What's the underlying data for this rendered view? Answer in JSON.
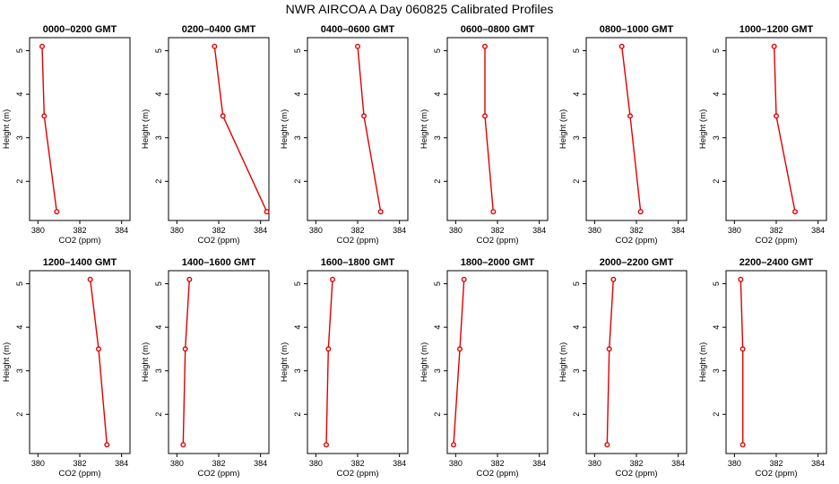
{
  "title": "NWR AIRCOA A  Day 060825  Calibrated Profiles",
  "colors": {
    "series": "#e00000",
    "axes": "#000000",
    "background": "#ffffff"
  },
  "chart_data": [
    {
      "type": "line",
      "title": "0000–0200 GMT",
      "xlabel": "CO2 (ppm)",
      "ylabel": "Height (m)",
      "xlim": [
        379.6,
        384.4
      ],
      "ylim": [
        1.1,
        5.3
      ],
      "xticks": [
        380,
        382,
        384
      ],
      "xtick_labels": [
        "380",
        "382",
        "384"
      ],
      "yticks": [
        2,
        3,
        4,
        5
      ],
      "ytick_labels": [
        "2",
        "3",
        "4",
        "5"
      ],
      "x": [
        380.2,
        380.3,
        380.9
      ],
      "y": [
        5.1,
        3.5,
        1.3
      ]
    },
    {
      "type": "line",
      "title": "0200–0400 GMT",
      "xlabel": "CO2 (ppm)",
      "ylabel": "Height (m)",
      "xlim": [
        379.6,
        384.4
      ],
      "ylim": [
        1.1,
        5.3
      ],
      "xticks": [
        380,
        382,
        384
      ],
      "xtick_labels": [
        "380",
        "382",
        "384"
      ],
      "yticks": [
        2,
        3,
        4,
        5
      ],
      "ytick_labels": [
        "2",
        "3",
        "4",
        "5"
      ],
      "x": [
        381.8,
        382.2,
        384.3
      ],
      "y": [
        5.1,
        3.5,
        1.3
      ]
    },
    {
      "type": "line",
      "title": "0400–0600 GMT",
      "xlabel": "CO2 (ppm)",
      "ylabel": "Height (m)",
      "xlim": [
        379.6,
        384.4
      ],
      "ylim": [
        1.1,
        5.3
      ],
      "xticks": [
        380,
        382,
        384
      ],
      "xtick_labels": [
        "380",
        "382",
        "384"
      ],
      "yticks": [
        2,
        3,
        4,
        5
      ],
      "ytick_labels": [
        "2",
        "3",
        "4",
        "5"
      ],
      "x": [
        382.0,
        382.3,
        383.1
      ],
      "y": [
        5.1,
        3.5,
        1.3
      ]
    },
    {
      "type": "line",
      "title": "0600–0800 GMT",
      "xlabel": "CO2 (ppm)",
      "ylabel": "Height (m)",
      "xlim": [
        379.6,
        384.4
      ],
      "ylim": [
        1.1,
        5.3
      ],
      "xticks": [
        380,
        382,
        384
      ],
      "xtick_labels": [
        "380",
        "382",
        "384"
      ],
      "yticks": [
        2,
        3,
        4,
        5
      ],
      "ytick_labels": [
        "2",
        "3",
        "4",
        "5"
      ],
      "x": [
        381.4,
        381.4,
        381.8
      ],
      "y": [
        5.1,
        3.5,
        1.3
      ]
    },
    {
      "type": "line",
      "title": "0800–1000 GMT",
      "xlabel": "CO2 (ppm)",
      "ylabel": "Height (m)",
      "xlim": [
        379.6,
        384.4
      ],
      "ylim": [
        1.1,
        5.3
      ],
      "xticks": [
        380,
        382,
        384
      ],
      "xtick_labels": [
        "380",
        "382",
        "384"
      ],
      "yticks": [
        2,
        3,
        4,
        5
      ],
      "ytick_labels": [
        "2",
        "3",
        "4",
        "5"
      ],
      "x": [
        381.3,
        381.7,
        382.2
      ],
      "y": [
        5.1,
        3.5,
        1.3
      ]
    },
    {
      "type": "line",
      "title": "1000–1200 GMT",
      "xlabel": "CO2 (ppm)",
      "ylabel": "Height (m)",
      "xlim": [
        379.6,
        384.4
      ],
      "ylim": [
        1.1,
        5.3
      ],
      "xticks": [
        380,
        382,
        384
      ],
      "xtick_labels": [
        "380",
        "382",
        "384"
      ],
      "yticks": [
        2,
        3,
        4,
        5
      ],
      "ytick_labels": [
        "2",
        "3",
        "4",
        "5"
      ],
      "x": [
        381.9,
        382.0,
        382.9
      ],
      "y": [
        5.1,
        3.5,
        1.3
      ]
    },
    {
      "type": "line",
      "title": "1200–1400 GMT",
      "xlabel": "CO2 (ppm)",
      "ylabel": "Height (m)",
      "xlim": [
        379.6,
        384.4
      ],
      "ylim": [
        1.1,
        5.3
      ],
      "xticks": [
        380,
        382,
        384
      ],
      "xtick_labels": [
        "380",
        "382",
        "384"
      ],
      "yticks": [
        2,
        3,
        4,
        5
      ],
      "ytick_labels": [
        "2",
        "3",
        "4",
        "5"
      ],
      "x": [
        382.5,
        382.9,
        383.3
      ],
      "y": [
        5.1,
        3.5,
        1.3
      ]
    },
    {
      "type": "line",
      "title": "1400–1600 GMT",
      "xlabel": "CO2 (ppm)",
      "ylabel": "Height (m)",
      "xlim": [
        379.6,
        384.4
      ],
      "ylim": [
        1.1,
        5.3
      ],
      "xticks": [
        380,
        382,
        384
      ],
      "xtick_labels": [
        "380",
        "382",
        "384"
      ],
      "yticks": [
        2,
        3,
        4,
        5
      ],
      "ytick_labels": [
        "2",
        "3",
        "4",
        "5"
      ],
      "x": [
        380.6,
        380.4,
        380.3
      ],
      "y": [
        5.1,
        3.5,
        1.3
      ]
    },
    {
      "type": "line",
      "title": "1600–1800 GMT",
      "xlabel": "CO2 (ppm)",
      "ylabel": "Height (m)",
      "xlim": [
        379.6,
        384.4
      ],
      "ylim": [
        1.1,
        5.3
      ],
      "xticks": [
        380,
        382,
        384
      ],
      "xtick_labels": [
        "380",
        "382",
        "384"
      ],
      "yticks": [
        2,
        3,
        4,
        5
      ],
      "ytick_labels": [
        "2",
        "3",
        "4",
        "5"
      ],
      "x": [
        380.8,
        380.6,
        380.5
      ],
      "y": [
        5.1,
        3.5,
        1.3
      ]
    },
    {
      "type": "line",
      "title": "1800–2000 GMT",
      "xlabel": "CO2 (ppm)",
      "ylabel": "Height (m)",
      "xlim": [
        379.6,
        384.4
      ],
      "ylim": [
        1.1,
        5.3
      ],
      "xticks": [
        380,
        382,
        384
      ],
      "xtick_labels": [
        "380",
        "382",
        "384"
      ],
      "yticks": [
        2,
        3,
        4,
        5
      ],
      "ytick_labels": [
        "2",
        "3",
        "4",
        "5"
      ],
      "x": [
        380.4,
        380.2,
        379.9
      ],
      "y": [
        5.1,
        3.5,
        1.3
      ]
    },
    {
      "type": "line",
      "title": "2000–2200 GMT",
      "xlabel": "CO2 (ppm)",
      "ylabel": "Height (m)",
      "xlim": [
        379.6,
        384.4
      ],
      "ylim": [
        1.1,
        5.3
      ],
      "xticks": [
        380,
        382,
        384
      ],
      "xtick_labels": [
        "380",
        "382",
        "384"
      ],
      "yticks": [
        2,
        3,
        4,
        5
      ],
      "ytick_labels": [
        "2",
        "3",
        "4",
        "5"
      ],
      "x": [
        380.9,
        380.7,
        380.6
      ],
      "y": [
        5.1,
        3.5,
        1.3
      ]
    },
    {
      "type": "line",
      "title": "2200–2400 GMT",
      "xlabel": "CO2 (ppm)",
      "ylabel": "Height (m)",
      "xlim": [
        379.6,
        384.4
      ],
      "ylim": [
        1.1,
        5.3
      ],
      "xticks": [
        380,
        382,
        384
      ],
      "xtick_labels": [
        "380",
        "382",
        "384"
      ],
      "yticks": [
        2,
        3,
        4,
        5
      ],
      "ytick_labels": [
        "2",
        "3",
        "4",
        "5"
      ],
      "x": [
        380.3,
        380.4,
        380.4
      ],
      "y": [
        5.1,
        3.5,
        1.3
      ]
    }
  ]
}
